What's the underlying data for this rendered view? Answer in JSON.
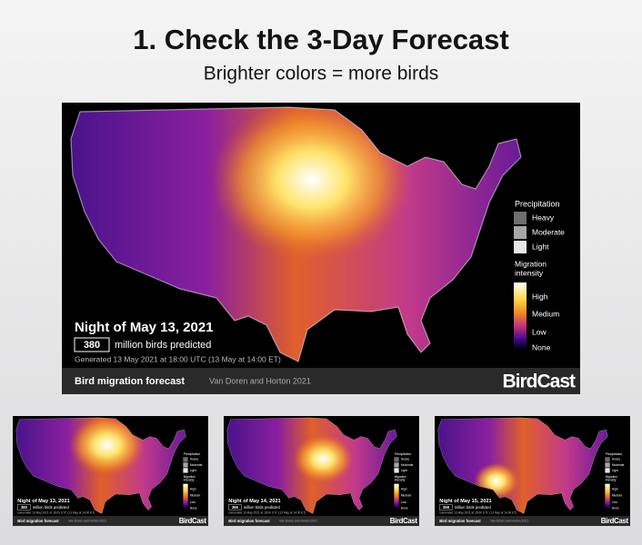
{
  "header": {
    "title": "1. Check the 3-Day Forecast",
    "subtitle": "Brighter colors = more birds"
  },
  "legend": {
    "precipitation_title": "Precipitation",
    "precipitation": [
      "Heavy",
      "Moderate",
      "Light"
    ],
    "intensity_title": [
      "Migration",
      "intensity"
    ],
    "intensity": [
      "High",
      "Medium",
      "Low",
      "None"
    ]
  },
  "birds_label": "million birds predicted",
  "footer": {
    "label": "Bird migration forecast",
    "credit": "Van Doren and Horton 2021",
    "brand": "BirdCast"
  },
  "panels": [
    {
      "night": "Night of May 13, 2021",
      "birds": 380,
      "generated": "Generated 13 May 2021 at 18:00 UTC (13 May at 14:00 ET)"
    },
    {
      "night": "Night of May 13, 2021",
      "birds": 380,
      "generated": "Generated 13 May 2021 at 18:00 UTC (13 May at 14:00 ET)"
    },
    {
      "night": "Night of May 14, 2021",
      "birds": 366,
      "generated": "Generated 13 May 2021 at 18:00 UTC (13 May at 14:00 ET)"
    },
    {
      "night": "Night of May 15, 2021",
      "birds": 358,
      "generated": "Generated 13 May 2021 at 18:00 UTC (13 May at 14:00 ET)"
    }
  ]
}
